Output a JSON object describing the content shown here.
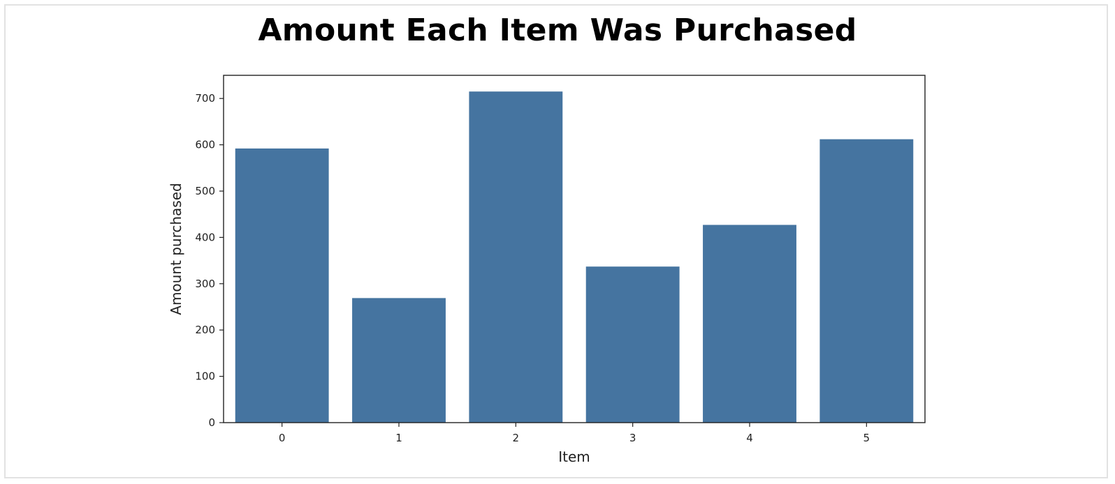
{
  "chart_data": {
    "type": "bar",
    "title": "Amount Each Item Was Purchased",
    "xlabel": "Item",
    "ylabel": "Amount purchased",
    "categories": [
      "0",
      "1",
      "2",
      "3",
      "4",
      "5"
    ],
    "values": [
      592,
      269,
      715,
      337,
      427,
      612
    ],
    "ylim": [
      0,
      750
    ],
    "yticks": [
      "0",
      "100",
      "200",
      "300",
      "400",
      "500",
      "600",
      "700"
    ],
    "bar_color": "#4574a0",
    "grid": false,
    "legend": "none"
  }
}
